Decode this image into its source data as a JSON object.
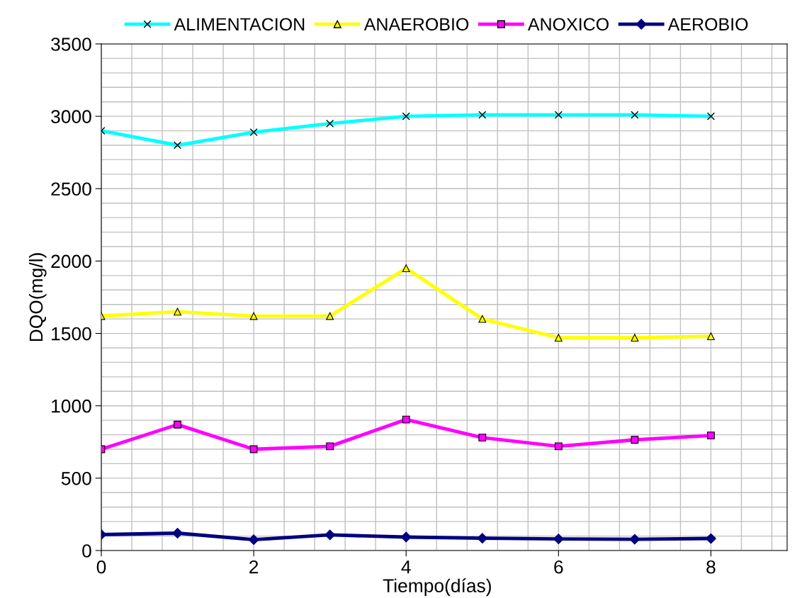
{
  "chart_data": {
    "type": "line",
    "xlabel": "Tiempo(días)",
    "ylabel": "DQO(mg/l)",
    "x": [
      0,
      1,
      2,
      3,
      4,
      5,
      6,
      7,
      8
    ],
    "series": [
      {
        "name": "ALIMENTACION",
        "color": "#00ffff",
        "marker": "cross",
        "values": [
          2900,
          2800,
          2890,
          2950,
          3000,
          3010,
          3010,
          3010,
          3000
        ]
      },
      {
        "name": "ANAEROBIO",
        "color": "#ffff00",
        "marker": "triangle",
        "values": [
          1620,
          1650,
          1620,
          1620,
          1950,
          1600,
          1470,
          1470,
          1480
        ]
      },
      {
        "name": "ANOXICO",
        "color": "#ff00ff",
        "marker": "square",
        "values": [
          700,
          870,
          700,
          720,
          905,
          780,
          720,
          765,
          795
        ]
      },
      {
        "name": "AEROBIO",
        "color": "#000080",
        "marker": "diamond",
        "values": [
          110,
          120,
          75,
          108,
          93,
          85,
          80,
          78,
          83
        ]
      }
    ],
    "xlim": [
      0,
      9
    ],
    "xticks": [
      0,
      2,
      4,
      6,
      8
    ],
    "ylim": [
      0,
      3500
    ],
    "yticks": [
      0,
      500,
      1000,
      1500,
      2000,
      2500,
      3000,
      3500
    ],
    "grid": true,
    "legend": "top",
    "line_style": "solid"
  }
}
